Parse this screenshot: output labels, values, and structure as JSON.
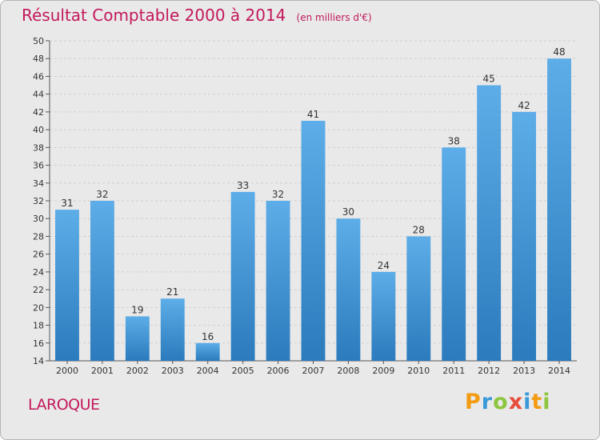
{
  "header": {
    "title": "Résultat Comptable 2000 à 2014",
    "subtitle": "(en milliers d'€)"
  },
  "place": "LAROQUE",
  "logo": {
    "text": "Proxiti",
    "letters": [
      {
        "ch": "P",
        "color": "#f39c12"
      },
      {
        "ch": "r",
        "color": "#3a9ad9"
      },
      {
        "ch": "o",
        "color": "#8dc63f"
      },
      {
        "ch": "x",
        "color": "#e74c3c"
      },
      {
        "ch": "i",
        "color": "#3a9ad9"
      },
      {
        "ch": "t",
        "color": "#f39c12"
      },
      {
        "ch": "i",
        "color": "#8dc63f"
      }
    ]
  },
  "chart_data": {
    "type": "bar",
    "title": "Résultat Comptable 2000 à 2014",
    "subtitle": "(en milliers d'€)",
    "categories": [
      "2000",
      "2001",
      "2002",
      "2003",
      "2004",
      "2005",
      "2006",
      "2007",
      "2008",
      "2009",
      "2010",
      "2011",
      "2012",
      "2013",
      "2014"
    ],
    "values": [
      31,
      32,
      19,
      21,
      16,
      33,
      32,
      41,
      30,
      24,
      28,
      38,
      45,
      42,
      48
    ],
    "xlabel": "",
    "ylabel": "",
    "ylim": [
      14,
      50
    ],
    "yticks": [
      14,
      16,
      18,
      20,
      22,
      24,
      26,
      28,
      30,
      32,
      34,
      36,
      38,
      40,
      42,
      44,
      46,
      48,
      50
    ],
    "grid": true,
    "colors": {
      "bar_top": "#5dade8",
      "bar_bottom": "#2b7bbd",
      "grid": "#cfcfcf",
      "title": "#c2185b"
    }
  }
}
